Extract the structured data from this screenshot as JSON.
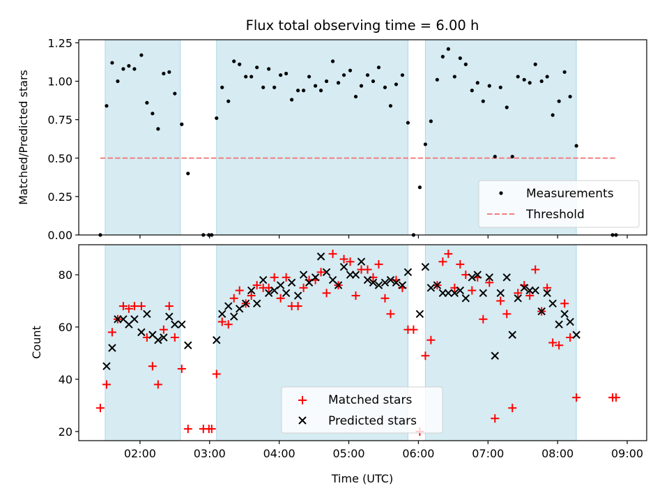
{
  "chart_data": [
    {
      "type": "scatter",
      "title": "Flux total observing time = 6.00 h",
      "xlabel": "",
      "ylabel": "Matched/Predicted stars",
      "xlim": [
        1.12,
        9.28
      ],
      "ylim": [
        0.0,
        1.27
      ],
      "x_ticks": [
        2,
        3,
        4,
        5,
        6,
        7,
        8,
        9
      ],
      "y_ticks": [
        0.0,
        0.25,
        0.5,
        0.75,
        1.0,
        1.25
      ],
      "y_tick_labels": [
        "0.00",
        "0.25",
        "0.50",
        "0.75",
        "1.00",
        "1.25"
      ],
      "shaded_intervals": [
        [
          1.5,
          2.58
        ],
        [
          3.1,
          5.85
        ],
        [
          6.1,
          8.27
        ]
      ],
      "threshold": {
        "name": "Threshold",
        "value": 0.5,
        "x_range": [
          1.43,
          8.85
        ],
        "color": "#f08080"
      },
      "legend": {
        "position": "lower-right",
        "entries": [
          "Measurements",
          "Threshold"
        ]
      },
      "series": [
        {
          "name": "Measurements",
          "color": "#000000",
          "x": [
            1.43,
            1.52,
            1.6,
            1.68,
            1.76,
            1.84,
            1.92,
            2.02,
            2.1,
            2.18,
            2.26,
            2.34,
            2.42,
            2.5,
            2.6,
            2.69,
            2.91,
            2.99,
            3.03,
            3.1,
            3.18,
            3.27,
            3.35,
            3.43,
            3.52,
            3.6,
            3.68,
            3.77,
            3.85,
            3.93,
            4.02,
            4.1,
            4.18,
            4.27,
            4.35,
            4.43,
            4.52,
            4.6,
            4.68,
            4.77,
            4.85,
            4.93,
            5.02,
            5.1,
            5.18,
            5.27,
            5.35,
            5.43,
            5.52,
            5.6,
            5.68,
            5.77,
            5.85,
            5.93,
            6.02,
            6.1,
            6.18,
            6.27,
            6.35,
            6.43,
            6.52,
            6.6,
            6.68,
            6.77,
            6.85,
            6.93,
            7.02,
            7.1,
            7.18,
            7.27,
            7.35,
            7.43,
            7.52,
            7.6,
            7.68,
            7.77,
            7.85,
            7.93,
            8.02,
            8.1,
            8.18,
            8.27,
            8.79,
            8.84
          ],
          "y": [
            0.0,
            0.84,
            1.12,
            1.0,
            1.08,
            1.1,
            1.08,
            1.17,
            0.86,
            0.79,
            0.69,
            1.05,
            1.06,
            0.92,
            0.72,
            0.4,
            0.0,
            0.0,
            0.0,
            0.76,
            0.96,
            0.87,
            1.13,
            1.11,
            1.03,
            1.03,
            1.09,
            0.96,
            1.08,
            0.96,
            1.04,
            1.05,
            0.88,
            0.94,
            0.94,
            1.03,
            0.97,
            0.94,
            1.0,
            1.13,
            0.99,
            1.04,
            1.07,
            0.9,
            0.97,
            1.04,
            1.0,
            1.09,
            0.96,
            0.84,
            0.98,
            1.04,
            0.73,
            0.0,
            0.31,
            0.59,
            0.74,
            1.01,
            1.16,
            1.21,
            1.03,
            1.15,
            1.11,
            0.94,
            0.99,
            0.87,
            0.97,
            0.51,
            0.96,
            0.83,
            0.51,
            1.03,
            1.01,
            0.99,
            1.11,
            1.0,
            1.03,
            0.78,
            0.87,
            1.06,
            0.9,
            0.58,
            0.0,
            0.0
          ]
        }
      ]
    },
    {
      "type": "scatter",
      "title": "",
      "xlabel": "Time (UTC)",
      "ylabel": "Count",
      "xlim": [
        1.12,
        9.28
      ],
      "ylim": [
        16.5,
        91.5
      ],
      "x_ticks": [
        2,
        3,
        4,
        5,
        6,
        7,
        8,
        9
      ],
      "x_tick_labels": [
        "02:00",
        "03:00",
        "04:00",
        "05:00",
        "06:00",
        "07:00",
        "08:00",
        "09:00"
      ],
      "y_ticks": [
        20,
        40,
        60,
        80
      ],
      "y_tick_labels": [
        "20",
        "40",
        "60",
        "80"
      ],
      "shaded_intervals": [
        [
          1.5,
          2.58
        ],
        [
          3.1,
          5.85
        ],
        [
          6.1,
          8.27
        ]
      ],
      "legend": {
        "position": "lower-center",
        "entries": [
          "Matched stars",
          "Predicted stars"
        ]
      },
      "series": [
        {
          "name": "Matched stars",
          "marker": "plus",
          "color": "#ff0000",
          "x": [
            1.43,
            1.52,
            1.6,
            1.68,
            1.76,
            1.84,
            1.92,
            2.02,
            2.1,
            2.18,
            2.26,
            2.34,
            2.42,
            2.5,
            2.6,
            2.69,
            2.91,
            2.99,
            3.03,
            3.1,
            3.18,
            3.27,
            3.35,
            3.43,
            3.52,
            3.6,
            3.68,
            3.77,
            3.85,
            3.93,
            4.02,
            4.1,
            4.18,
            4.27,
            4.35,
            4.43,
            4.52,
            4.6,
            4.68,
            4.77,
            4.85,
            4.93,
            5.02,
            5.1,
            5.18,
            5.27,
            5.35,
            5.43,
            5.52,
            5.6,
            5.68,
            5.77,
            5.85,
            5.93,
            6.02,
            6.1,
            6.18,
            6.27,
            6.35,
            6.43,
            6.52,
            6.6,
            6.68,
            6.77,
            6.85,
            6.93,
            7.02,
            7.1,
            7.18,
            7.27,
            7.35,
            7.43,
            7.52,
            7.6,
            7.68,
            7.77,
            7.85,
            7.93,
            8.02,
            8.1,
            8.18,
            8.27,
            8.79,
            8.84
          ],
          "y": [
            29,
            38,
            58,
            63,
            68,
            67,
            68,
            68,
            56,
            45,
            38,
            59,
            68,
            56,
            44,
            21,
            21,
            21,
            21,
            42,
            62,
            61,
            71,
            74,
            69,
            72,
            76,
            75,
            75,
            79,
            71,
            79,
            68,
            68,
            75,
            78,
            78,
            81,
            73,
            88,
            76,
            86,
            85,
            72,
            82,
            82,
            79,
            84,
            71,
            65,
            78,
            75,
            59,
            59,
            20,
            49,
            55,
            76,
            85,
            88,
            75,
            84,
            80,
            74,
            79,
            63,
            77,
            25,
            70,
            65,
            29,
            73,
            76,
            72,
            82,
            66,
            75,
            54,
            53,
            69,
            56,
            33,
            33,
            33
          ]
        },
        {
          "name": "Predicted stars",
          "marker": "x",
          "color": "#000000",
          "x": [
            1.52,
            1.6,
            1.68,
            1.76,
            1.84,
            1.92,
            2.02,
            2.1,
            2.18,
            2.26,
            2.34,
            2.42,
            2.5,
            2.6,
            2.69,
            3.1,
            3.18,
            3.27,
            3.35,
            3.43,
            3.52,
            3.6,
            3.68,
            3.77,
            3.85,
            3.93,
            4.02,
            4.1,
            4.18,
            4.27,
            4.35,
            4.43,
            4.52,
            4.6,
            4.68,
            4.77,
            4.85,
            4.93,
            5.02,
            5.1,
            5.18,
            5.27,
            5.35,
            5.43,
            5.52,
            5.6,
            5.68,
            5.77,
            5.85,
            6.02,
            6.1,
            6.18,
            6.27,
            6.35,
            6.43,
            6.52,
            6.6,
            6.68,
            6.77,
            6.85,
            6.93,
            7.02,
            7.1,
            7.18,
            7.27,
            7.35,
            7.43,
            7.52,
            7.6,
            7.68,
            7.77,
            7.85,
            7.93,
            8.02,
            8.1,
            8.18,
            8.27
          ],
          "y": [
            45,
            52,
            63,
            63,
            61,
            63,
            58,
            65,
            57,
            55,
            56,
            64,
            61,
            61,
            53,
            55,
            65,
            68,
            64,
            67,
            69,
            74,
            69,
            78,
            73,
            74,
            76,
            73,
            77,
            72,
            80,
            77,
            79,
            87,
            81,
            78,
            76,
            83,
            80,
            80,
            85,
            78,
            77,
            76,
            77,
            78,
            77,
            76,
            81,
            65,
            83,
            75,
            76,
            73,
            73,
            73,
            74,
            71,
            79,
            80,
            73,
            79,
            49,
            73,
            79,
            57,
            71,
            75,
            74,
            74,
            66,
            73,
            69,
            61,
            65,
            62,
            57
          ]
        }
      ]
    }
  ]
}
